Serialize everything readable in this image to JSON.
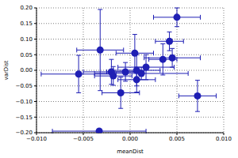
{
  "chart_data": {
    "type": "scatter",
    "x_label": "meanDist",
    "y_label": "varDist",
    "x": [
      0.005,
      0.0042,
      -0.0032,
      0.0005,
      0.0045,
      0.0035,
      0.0017,
      0.0007,
      -0.0055,
      -0.002,
      -0.0018,
      -0.0005,
      0.0007,
      -0.001,
      0.0072,
      -0.0033,
      0.0012
    ],
    "values": [
      0.17,
      0.093,
      0.065,
      0.055,
      0.04,
      0.035,
      0.01,
      0.0,
      -0.012,
      -0.005,
      -0.018,
      -0.005,
      -0.03,
      -0.072,
      -0.082,
      -0.195,
      -0.01
    ],
    "x_errors": [
      0.0025,
      0.0015,
      0.0025,
      0.002,
      0.003,
      0.0015,
      0.003,
      0.0025,
      0.004,
      0.003,
      0.002,
      0.002,
      0.002,
      0.002,
      0.002,
      0.005,
      0.005
    ],
    "y_errors": [
      0.03,
      0.03,
      0.13,
      0.06,
      0.03,
      0.05,
      0.04,
      0.05,
      0.06,
      0.04,
      0.03,
      0.03,
      0.04,
      0.05,
      0.05,
      0.005,
      0.02
    ],
    "color": "#1f1fb4",
    "marker": "circle",
    "grid": true,
    "xlim": [
      -0.01,
      0.01
    ],
    "xticks": [
      {
        "value": -0.01,
        "label": "−0.010"
      },
      {
        "value": -0.005,
        "label": "−0.005"
      },
      {
        "value": 0,
        "label": "0.000"
      },
      {
        "value": 0.005,
        "label": "0.005"
      },
      {
        "value": 0.01,
        "label": "0.010"
      }
    ],
    "ylim": [
      -0.2,
      0.2
    ],
    "yticks": [
      {
        "value": -0.2,
        "label": "−0.20"
      },
      {
        "value": -0.15,
        "label": "−0.15"
      },
      {
        "value": -0.1,
        "label": "−0.10"
      },
      {
        "value": -0.05,
        "label": "−0.05"
      },
      {
        "value": 0,
        "label": "0.00"
      },
      {
        "value": 0.05,
        "label": "0.05"
      },
      {
        "value": 0.1,
        "label": "0.10"
      },
      {
        "value": 0.15,
        "label": "0.15"
      },
      {
        "value": 0.2,
        "label": "0.20"
      }
    ]
  }
}
